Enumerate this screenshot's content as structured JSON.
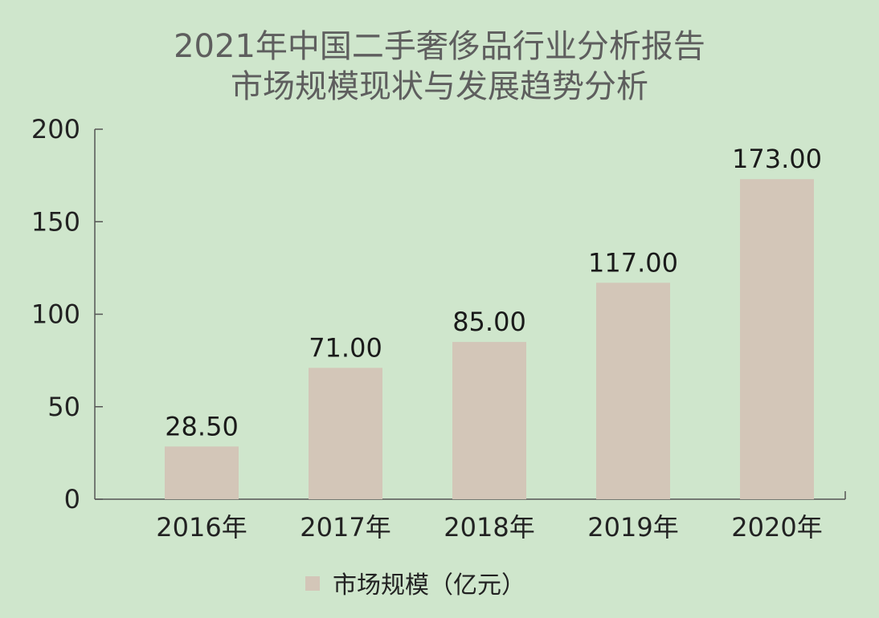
{
  "chart_data": {
    "type": "bar",
    "title": "2021年中国二手奢侈品行业分析报告",
    "subtitle": "市场规模现状与发展趋势分析",
    "categories": [
      "2016年",
      "2017年",
      "2018年",
      "2019年",
      "2020年"
    ],
    "series": [
      {
        "name": "市场规模（亿元）",
        "values": [
          28.5,
          71.0,
          85.0,
          117.0,
          173.0
        ]
      }
    ],
    "data_labels": [
      "28.50",
      "71.00",
      "85.00",
      "117.00",
      "173.00"
    ],
    "yticks": [
      0,
      50,
      100,
      150,
      200
    ],
    "ylim": [
      0,
      200
    ],
    "xlabel": "",
    "ylabel": "",
    "grid": false,
    "legend_position": "bottom-center",
    "colors": {
      "background": "#cfe6cc",
      "bar": "#d3c6b8",
      "axis": "#555555",
      "title": "#5e5e5e"
    }
  }
}
